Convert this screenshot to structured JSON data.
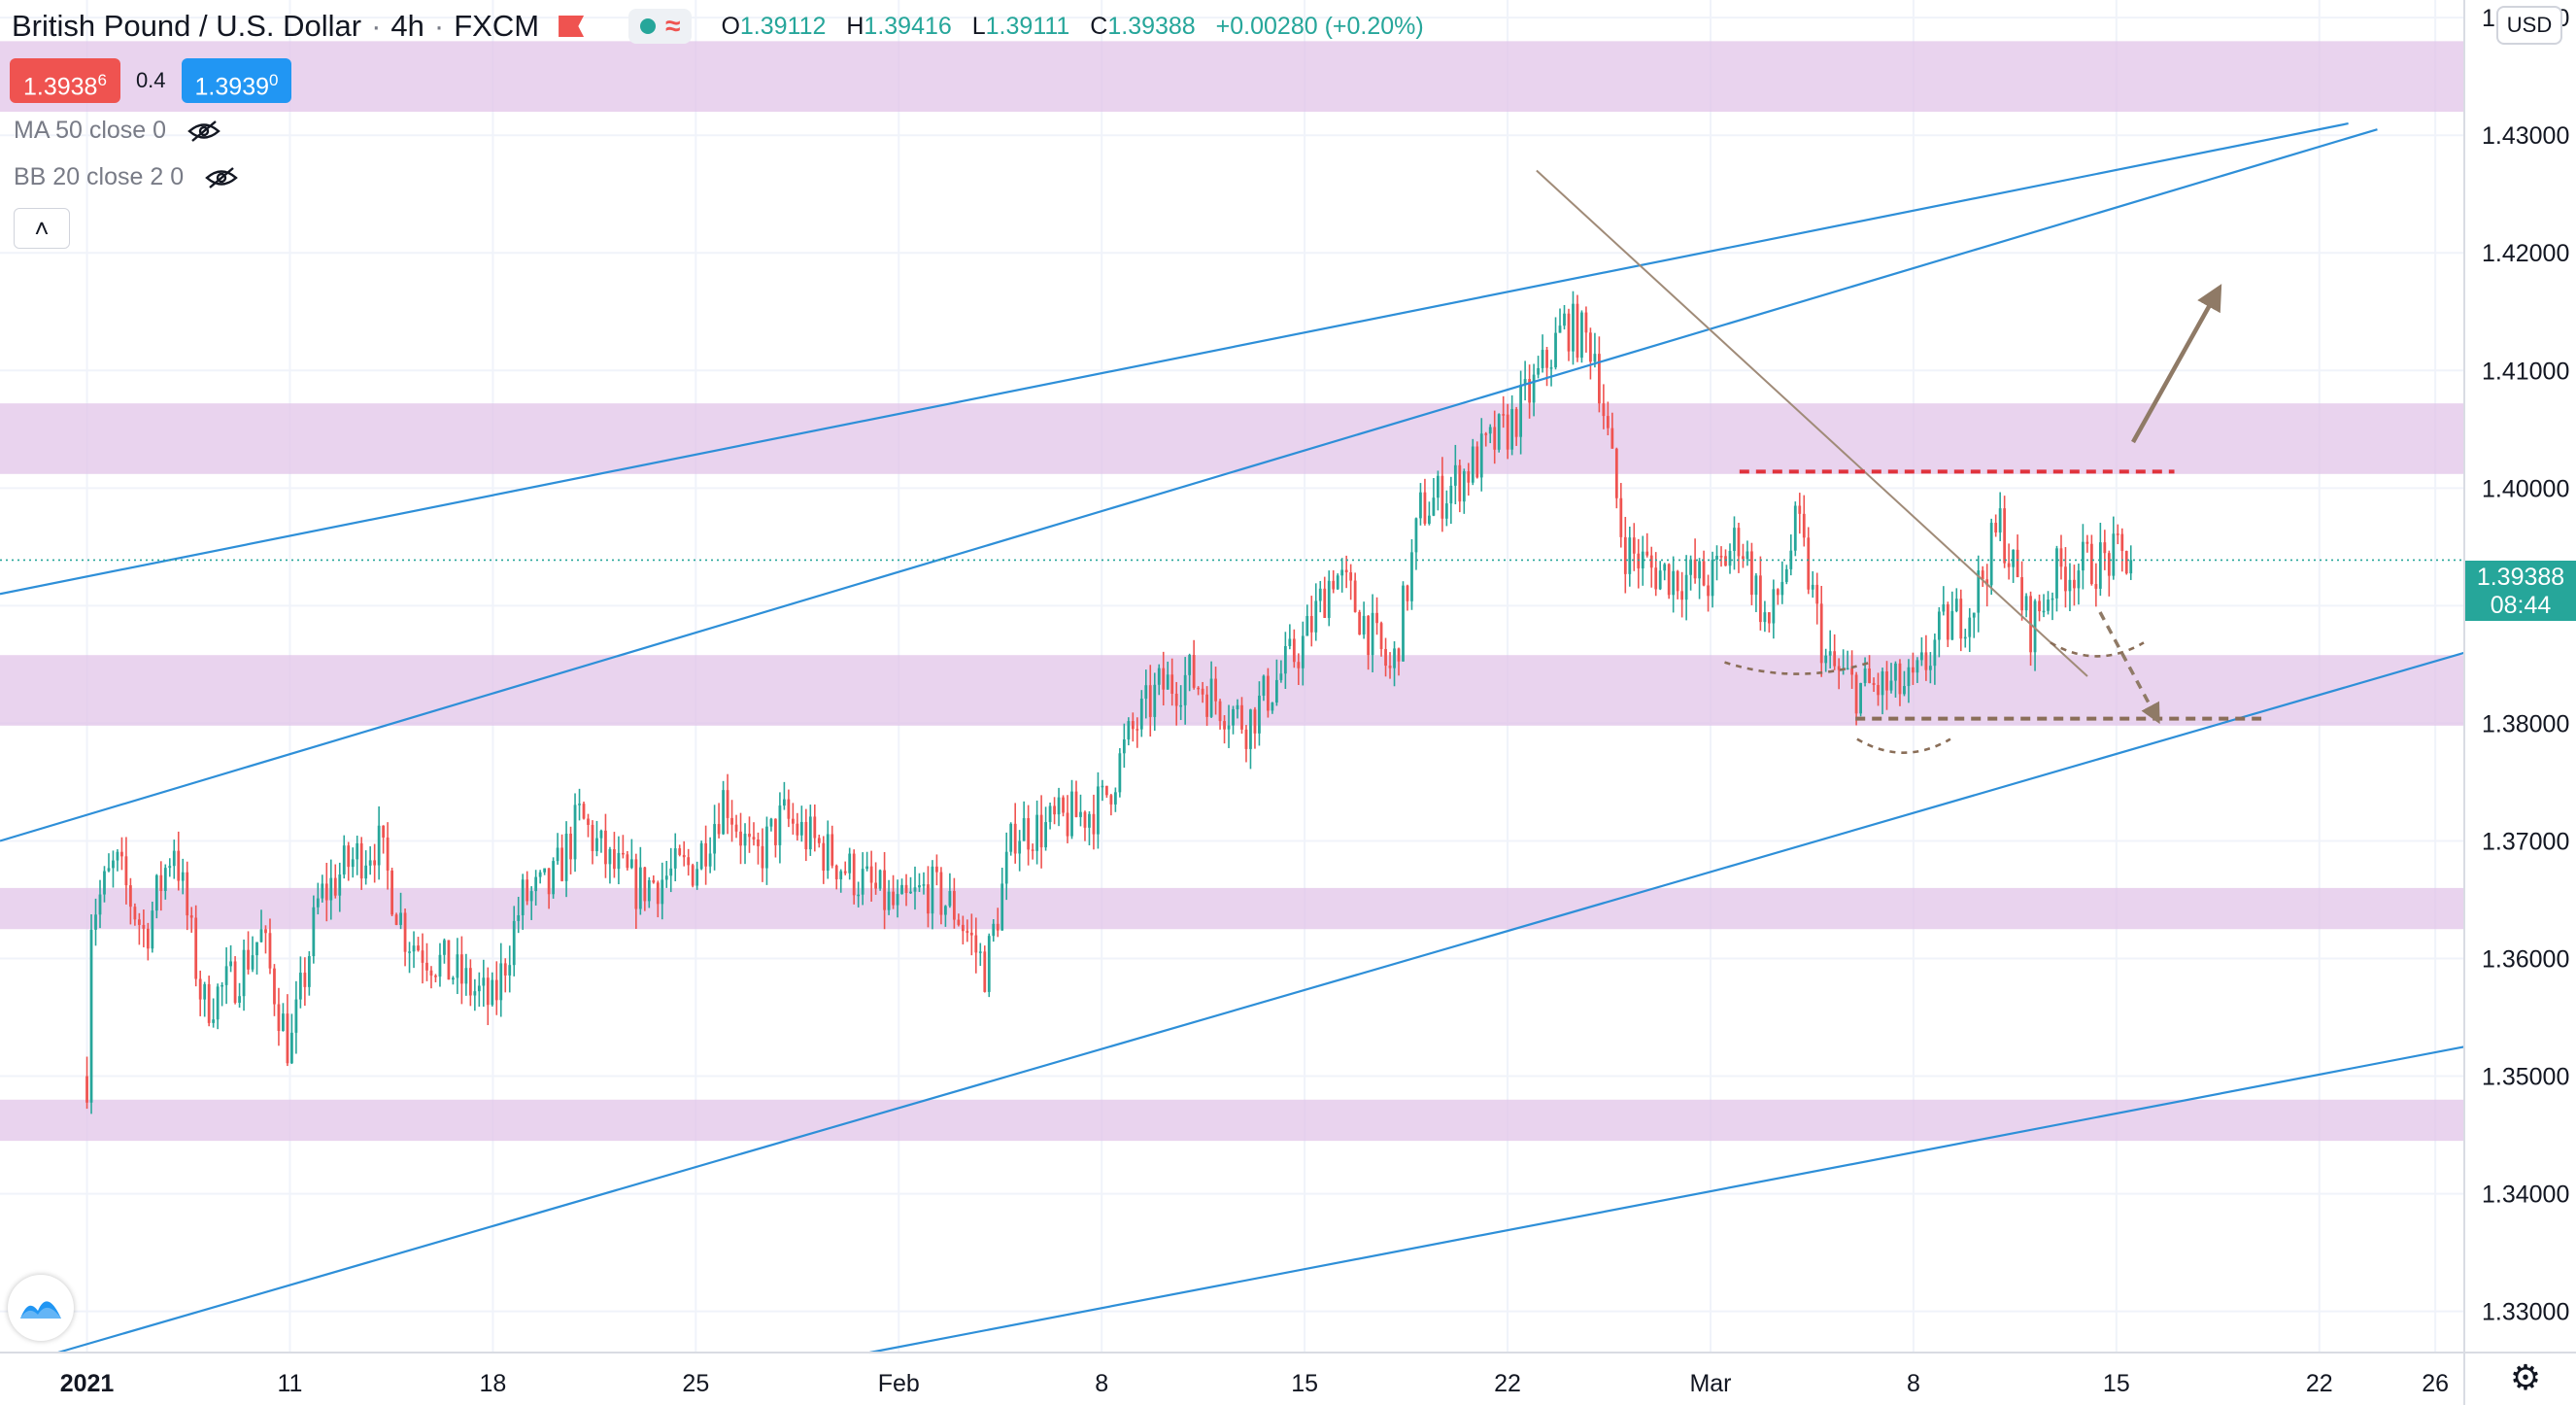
{
  "header": {
    "symbol": "British Pound / U.S. Dollar",
    "interval": "4h",
    "exchange": "FXCM",
    "ohlc": {
      "open_label": "O",
      "open": "1.39112",
      "high_label": "H",
      "high": "1.39416",
      "low_label": "L",
      "low": "1.39111",
      "close_label": "C",
      "close": "1.39388",
      "change": "+0.00280 (+0.20%)"
    }
  },
  "trade": {
    "sell_price": "1.3938",
    "sell_pip": "6",
    "spread": "0.4",
    "buy_price": "1.3939",
    "buy_pip": "0"
  },
  "indicators": [
    {
      "label": "MA 50 close 0"
    },
    {
      "label": "BB 20 close 2 0"
    }
  ],
  "currency": "USD",
  "last_price": {
    "value": "1.39388",
    "countdown": "08:44"
  },
  "icons": {
    "flag": "flag-icon",
    "market_status": "market-open-dot-icon",
    "approx": "approx-icon",
    "eye_hidden": "eye-crossed-icon",
    "collapse": "chevron-up-icon",
    "logo": "tradingview-logo-icon",
    "settings": "gear-icon"
  },
  "chart_data": {
    "type": "candlestick",
    "y_axis": {
      "ticks": [
        1.44,
        1.43,
        1.42,
        1.41,
        1.4,
        1.39,
        1.38,
        1.37,
        1.36,
        1.35,
        1.34,
        1.33
      ],
      "tick_labels": [
        "1.44000",
        "1.43000",
        "1.42000",
        "1.41000",
        "1.40000",
        "1.39000",
        "1.38000",
        "1.37000",
        "1.36000",
        "1.35000",
        "1.34000",
        "1.33000"
      ],
      "range": [
        1.3265,
        1.4415
      ]
    },
    "x_axis": {
      "tick_labels": [
        "2021",
        "11",
        "18",
        "25",
        "Feb",
        "8",
        "15",
        "22",
        "Mar",
        "8",
        "15",
        "22",
        "26"
      ],
      "tick_dates": [
        "2021-01-04",
        "2021-01-11",
        "2021-01-18",
        "2021-01-25",
        "2021-02-01",
        "2021-02-08",
        "2021-02-15",
        "2021-02-22",
        "2021-03-01",
        "2021-03-08",
        "2021-03-15",
        "2021-03-22",
        "2021-03-26"
      ],
      "range": [
        "2021-01-01",
        "2021-03-27"
      ]
    },
    "grid": true,
    "colors": {
      "up": "#26a69a",
      "down": "#ef5350",
      "zone": "#e1c4e8",
      "channel": "#2e8fd8",
      "trendline": "#a08b78",
      "resistance": "#e0333c",
      "support": "#8a6e58",
      "arrow": "#8f7a66"
    },
    "candles_path": [
      [
        "2021-01-04",
        1.35
      ],
      [
        "2021-01-04",
        1.363
      ],
      [
        "2021-01-05",
        1.368
      ],
      [
        "2021-01-06",
        1.362
      ],
      [
        "2021-01-07",
        1.37
      ],
      [
        "2021-01-08",
        1.356
      ],
      [
        "2021-01-09",
        1.358
      ],
      [
        "2021-01-10",
        1.362
      ],
      [
        "2021-01-11",
        1.352
      ],
      [
        "2021-01-12",
        1.365
      ],
      [
        "2021-01-13",
        1.368
      ],
      [
        "2021-01-14",
        1.37
      ],
      [
        "2021-01-15",
        1.362
      ],
      [
        "2021-01-18",
        1.356
      ],
      [
        "2021-01-19",
        1.365
      ],
      [
        "2021-01-20",
        1.366
      ],
      [
        "2021-01-21",
        1.372
      ],
      [
        "2021-01-22",
        1.368
      ],
      [
        "2021-01-23",
        1.366
      ],
      [
        "2021-01-25",
        1.368
      ],
      [
        "2021-01-26",
        1.374
      ],
      [
        "2021-01-27",
        1.368
      ],
      [
        "2021-01-28",
        1.372
      ],
      [
        "2021-01-29",
        1.37
      ],
      [
        "2021-02-01",
        1.364
      ],
      [
        "2021-02-02",
        1.366
      ],
      [
        "2021-02-03",
        1.364
      ],
      [
        "2021-02-04",
        1.359
      ],
      [
        "2021-02-05",
        1.371
      ],
      [
        "2021-02-06",
        1.371
      ],
      [
        "2021-02-08",
        1.373
      ],
      [
        "2021-02-09",
        1.379
      ],
      [
        "2021-02-10",
        1.383
      ],
      [
        "2021-02-11",
        1.384
      ],
      [
        "2021-02-12",
        1.382
      ],
      [
        "2021-02-13",
        1.38
      ],
      [
        "2021-02-15",
        1.387
      ],
      [
        "2021-02-16",
        1.393
      ],
      [
        "2021-02-17",
        1.389
      ],
      [
        "2021-02-18",
        1.384
      ],
      [
        "2021-02-19",
        1.398
      ],
      [
        "2021-02-20",
        1.4
      ],
      [
        "2021-02-22",
        1.405
      ],
      [
        "2021-02-23",
        1.409
      ],
      [
        "2021-02-24",
        1.414
      ],
      [
        "2021-02-25",
        1.412
      ],
      [
        "2021-02-26",
        1.395
      ],
      [
        "2021-02-27",
        1.393
      ],
      [
        "2021-03-01",
        1.392
      ],
      [
        "2021-03-02",
        1.396
      ],
      [
        "2021-03-03",
        1.388
      ],
      [
        "2021-03-04",
        1.397
      ],
      [
        "2021-03-05",
        1.385
      ],
      [
        "2021-03-06",
        1.383
      ],
      [
        "2021-03-08",
        1.383
      ],
      [
        "2021-03-09",
        1.388
      ],
      [
        "2021-03-10",
        1.39
      ],
      [
        "2021-03-11",
        1.397
      ],
      [
        "2021-03-12",
        1.388
      ],
      [
        "2021-03-13",
        1.393
      ],
      [
        "2021-03-15",
        1.394
      ]
    ],
    "zones": [
      [
        1.432,
        1.438
      ],
      [
        1.4012,
        1.4072
      ],
      [
        1.3798,
        1.3858
      ],
      [
        1.3625,
        1.366
      ],
      [
        1.3445,
        1.348
      ]
    ],
    "channel_lines": [
      {
        "from": [
          "2021-01-01",
          1.391
        ],
        "to": [
          "2021-03-23",
          1.431
        ]
      },
      {
        "from": [
          "2021-01-01",
          1.37
        ],
        "to": [
          "2021-03-24",
          1.4305
        ]
      },
      {
        "from": [
          "2021-01-03",
          1.3265
        ],
        "to": [
          "2021-03-27",
          1.386
        ]
      },
      {
        "from": [
          "2021-01-31",
          1.3265
        ],
        "to": [
          "2021-03-27",
          1.3525
        ]
      }
    ],
    "trendline": {
      "from": [
        "2021-02-23",
        1.427
      ],
      "to": [
        "2021-03-14",
        1.384
      ]
    },
    "resistance_level": {
      "value": 1.4014,
      "from": "2021-03-02",
      "to": "2021-03-17"
    },
    "support_level": {
      "value": 1.3804,
      "from": "2021-03-06",
      "to": "2021-03-20"
    },
    "last_price_value": 1.39388
  }
}
